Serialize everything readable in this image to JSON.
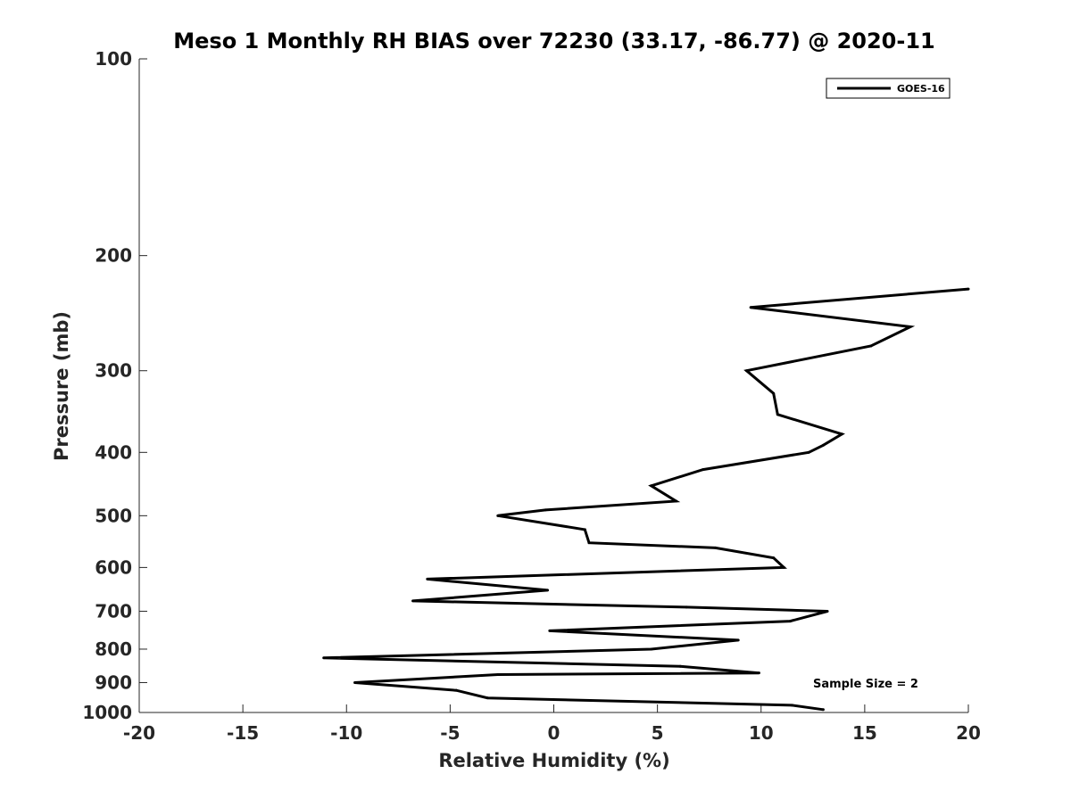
{
  "chart_data": {
    "type": "line",
    "title": "Meso 1 Monthly RH BIAS over 72230 (33.17, -86.77) @ 2020-11",
    "xlabel": "Relative Humidity (%)",
    "ylabel": "Pressure (mb)",
    "xlim": [
      -20,
      20
    ],
    "ylim": [
      100,
      1000
    ],
    "y_scale": "log",
    "y_inverted": true,
    "grid": false,
    "legend_position": "top-right",
    "x_ticks": [
      -20,
      -15,
      -10,
      -5,
      0,
      5,
      10,
      15,
      20
    ],
    "x_tick_labels": [
      "-20",
      "-15",
      "-10",
      "-5",
      "0",
      "5",
      "10",
      "15",
      "20"
    ],
    "y_ticks": [
      100,
      200,
      300,
      400,
      500,
      600,
      700,
      800,
      900,
      1000
    ],
    "y_tick_labels": [
      "100",
      "200",
      "300",
      "400",
      "500",
      "600",
      "700",
      "800",
      "900",
      "1000"
    ],
    "annotation": "Sample Size = 2",
    "series": [
      {
        "name": "GOES-16",
        "color": "#000000",
        "points": [
          {
            "x": 20.0,
            "y": 225
          },
          {
            "x": 9.5,
            "y": 240
          },
          {
            "x": 17.2,
            "y": 257
          },
          {
            "x": 15.3,
            "y": 275
          },
          {
            "x": 9.3,
            "y": 300
          },
          {
            "x": 10.6,
            "y": 325
          },
          {
            "x": 10.8,
            "y": 350
          },
          {
            "x": 13.9,
            "y": 375
          },
          {
            "x": 13.0,
            "y": 390
          },
          {
            "x": 12.3,
            "y": 400
          },
          {
            "x": 7.2,
            "y": 425
          },
          {
            "x": 4.7,
            "y": 450
          },
          {
            "x": 5.9,
            "y": 475
          },
          {
            "x": -0.4,
            "y": 490
          },
          {
            "x": -2.7,
            "y": 500
          },
          {
            "x": 1.5,
            "y": 525
          },
          {
            "x": 1.7,
            "y": 550
          },
          {
            "x": 7.8,
            "y": 560
          },
          {
            "x": 10.6,
            "y": 580
          },
          {
            "x": 11.1,
            "y": 600
          },
          {
            "x": -6.1,
            "y": 625
          },
          {
            "x": -0.3,
            "y": 650
          },
          {
            "x": -6.8,
            "y": 675
          },
          {
            "x": 6.4,
            "y": 690
          },
          {
            "x": 13.2,
            "y": 700
          },
          {
            "x": 11.4,
            "y": 725
          },
          {
            "x": -0.2,
            "y": 750
          },
          {
            "x": 8.9,
            "y": 775
          },
          {
            "x": 4.7,
            "y": 800
          },
          {
            "x": -11.1,
            "y": 825
          },
          {
            "x": 6.1,
            "y": 850
          },
          {
            "x": 9.9,
            "y": 870
          },
          {
            "x": -2.7,
            "y": 875
          },
          {
            "x": -9.6,
            "y": 900
          },
          {
            "x": -4.7,
            "y": 925
          },
          {
            "x": -3.2,
            "y": 950
          },
          {
            "x": 11.5,
            "y": 975
          },
          {
            "x": 13.0,
            "y": 990
          }
        ]
      }
    ]
  }
}
